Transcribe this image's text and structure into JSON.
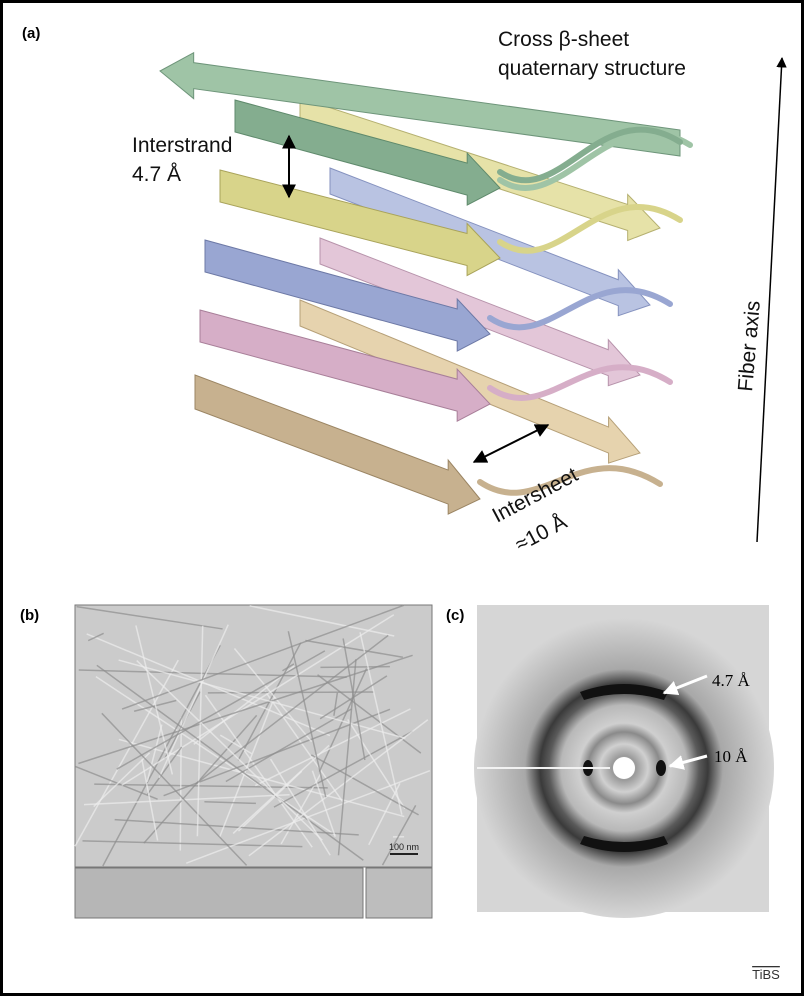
{
  "panels": {
    "a": {
      "label": "(a)",
      "title_lines": [
        "Cross β-sheet",
        "quaternary structure"
      ],
      "interstrand": {
        "label": "Interstrand",
        "distance": "4.7 Å"
      },
      "intersheet": {
        "label": "Intersheet",
        "distance": "≈10 Å"
      },
      "axis_label": "Fiber axis"
    },
    "b": {
      "label": "(b)",
      "scale_bar": "100 nm"
    },
    "c": {
      "label": "(c)",
      "annotations": [
        "4.7 Å",
        "10 Å"
      ]
    }
  },
  "footer": {
    "logo": "TiBS"
  }
}
